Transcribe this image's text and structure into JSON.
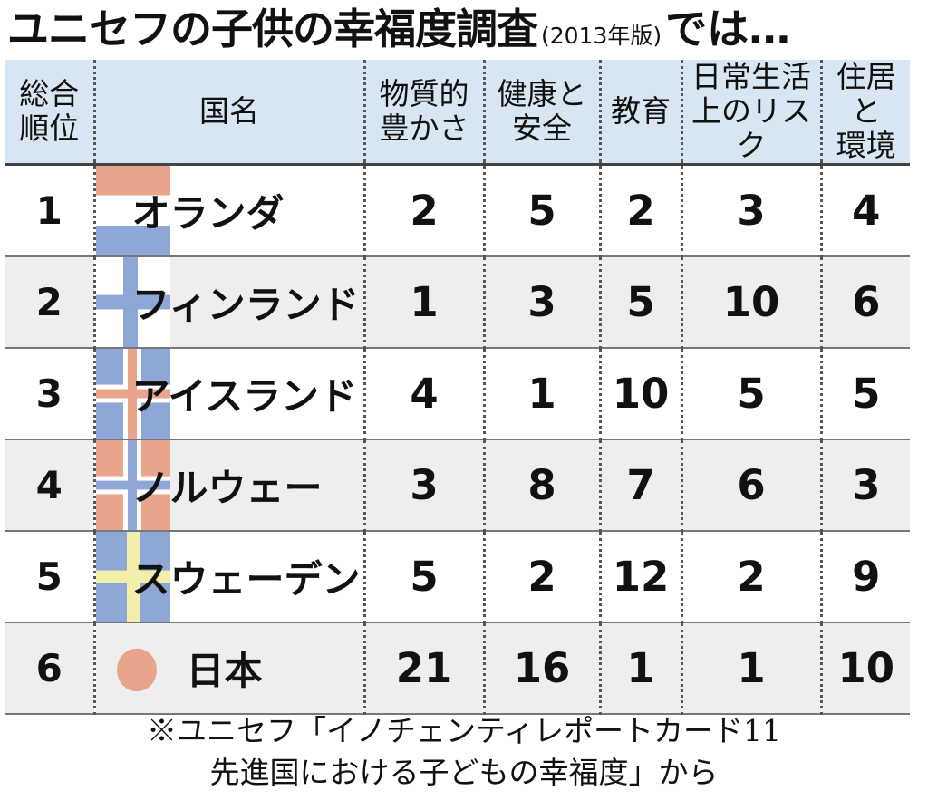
{
  "title": {
    "main": "ユニセフの子供の幸福度調査",
    "edition": "(2013年版)",
    "tail": "では…"
  },
  "table": {
    "headers": {
      "rank": [
        "総合",
        "順位"
      ],
      "country": "国名",
      "material": [
        "物質的",
        "豊かさ"
      ],
      "health": [
        "健康と",
        "安全"
      ],
      "education": "教育",
      "risk": [
        "日常生活",
        "上のリスク"
      ],
      "housing": [
        "住居と",
        "環境"
      ]
    },
    "rows": [
      {
        "rank": "1",
        "country": "オランダ",
        "flag": "netherlands",
        "material": "2",
        "health": "5",
        "education": "2",
        "risk": "3",
        "housing": "4"
      },
      {
        "rank": "2",
        "country": "フィンランド",
        "flag": "finland",
        "material": "1",
        "health": "3",
        "education": "5",
        "risk": "10",
        "housing": "6"
      },
      {
        "rank": "3",
        "country": "アイスランド",
        "flag": "iceland",
        "material": "4",
        "health": "1",
        "education": "10",
        "risk": "5",
        "housing": "5"
      },
      {
        "rank": "4",
        "country": "ノルウェー",
        "flag": "norway",
        "material": "3",
        "health": "8",
        "education": "7",
        "risk": "6",
        "housing": "3"
      },
      {
        "rank": "5",
        "country": "スウェーデン",
        "flag": "sweden",
        "material": "5",
        "health": "2",
        "education": "12",
        "risk": "2",
        "housing": "9"
      },
      {
        "rank": "6",
        "country": "日本",
        "flag": "japan",
        "material": "21",
        "health": "16",
        "education": "1",
        "risk": "1",
        "housing": "10"
      }
    ]
  },
  "colors": {
    "header_bg": "#d7e6f2",
    "alt_row_bg": "#eeeeee",
    "flag_red": "#e8a58c",
    "flag_blue": "#8fa7d6",
    "flag_yellow": "#f3eeaa"
  },
  "footer": {
    "line1": "※ユニセフ「イノチェンティレポートカード11",
    "line2": "先進国における子どもの幸福度」から"
  }
}
